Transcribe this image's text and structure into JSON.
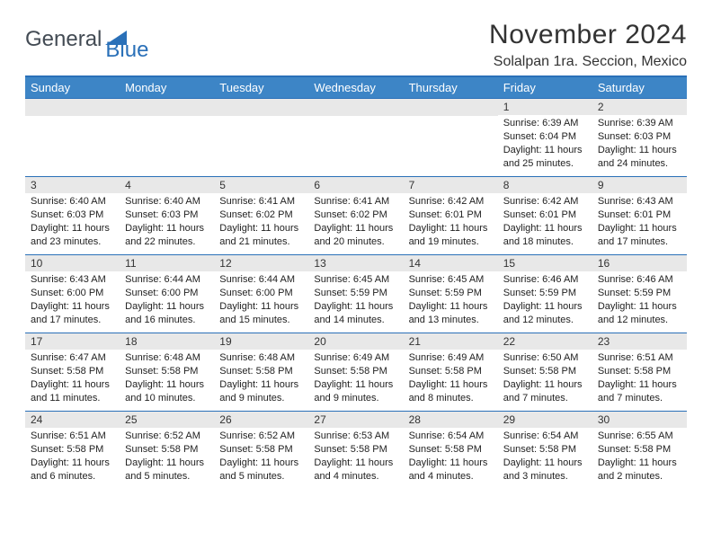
{
  "brand": {
    "text1": "General",
    "text2": "Blue"
  },
  "header": {
    "title": "November 2024",
    "location": "Solalpan 1ra. Seccion, Mexico"
  },
  "colors": {
    "header_bar": "#3d85c6",
    "border": "#2a70b8",
    "day_number_bg": "#e8e8e8",
    "text": "#222222",
    "background": "#ffffff"
  },
  "weekdays": [
    "Sunday",
    "Monday",
    "Tuesday",
    "Wednesday",
    "Thursday",
    "Friday",
    "Saturday"
  ],
  "weeks": [
    [
      null,
      null,
      null,
      null,
      null,
      {
        "n": "1",
        "sr": "6:39 AM",
        "ss": "6:04 PM",
        "dl": "11 hours and 25 minutes."
      },
      {
        "n": "2",
        "sr": "6:39 AM",
        "ss": "6:03 PM",
        "dl": "11 hours and 24 minutes."
      }
    ],
    [
      {
        "n": "3",
        "sr": "6:40 AM",
        "ss": "6:03 PM",
        "dl": "11 hours and 23 minutes."
      },
      {
        "n": "4",
        "sr": "6:40 AM",
        "ss": "6:03 PM",
        "dl": "11 hours and 22 minutes."
      },
      {
        "n": "5",
        "sr": "6:41 AM",
        "ss": "6:02 PM",
        "dl": "11 hours and 21 minutes."
      },
      {
        "n": "6",
        "sr": "6:41 AM",
        "ss": "6:02 PM",
        "dl": "11 hours and 20 minutes."
      },
      {
        "n": "7",
        "sr": "6:42 AM",
        "ss": "6:01 PM",
        "dl": "11 hours and 19 minutes."
      },
      {
        "n": "8",
        "sr": "6:42 AM",
        "ss": "6:01 PM",
        "dl": "11 hours and 18 minutes."
      },
      {
        "n": "9",
        "sr": "6:43 AM",
        "ss": "6:01 PM",
        "dl": "11 hours and 17 minutes."
      }
    ],
    [
      {
        "n": "10",
        "sr": "6:43 AM",
        "ss": "6:00 PM",
        "dl": "11 hours and 17 minutes."
      },
      {
        "n": "11",
        "sr": "6:44 AM",
        "ss": "6:00 PM",
        "dl": "11 hours and 16 minutes."
      },
      {
        "n": "12",
        "sr": "6:44 AM",
        "ss": "6:00 PM",
        "dl": "11 hours and 15 minutes."
      },
      {
        "n": "13",
        "sr": "6:45 AM",
        "ss": "5:59 PM",
        "dl": "11 hours and 14 minutes."
      },
      {
        "n": "14",
        "sr": "6:45 AM",
        "ss": "5:59 PM",
        "dl": "11 hours and 13 minutes."
      },
      {
        "n": "15",
        "sr": "6:46 AM",
        "ss": "5:59 PM",
        "dl": "11 hours and 12 minutes."
      },
      {
        "n": "16",
        "sr": "6:46 AM",
        "ss": "5:59 PM",
        "dl": "11 hours and 12 minutes."
      }
    ],
    [
      {
        "n": "17",
        "sr": "6:47 AM",
        "ss": "5:58 PM",
        "dl": "11 hours and 11 minutes."
      },
      {
        "n": "18",
        "sr": "6:48 AM",
        "ss": "5:58 PM",
        "dl": "11 hours and 10 minutes."
      },
      {
        "n": "19",
        "sr": "6:48 AM",
        "ss": "5:58 PM",
        "dl": "11 hours and 9 minutes."
      },
      {
        "n": "20",
        "sr": "6:49 AM",
        "ss": "5:58 PM",
        "dl": "11 hours and 9 minutes."
      },
      {
        "n": "21",
        "sr": "6:49 AM",
        "ss": "5:58 PM",
        "dl": "11 hours and 8 minutes."
      },
      {
        "n": "22",
        "sr": "6:50 AM",
        "ss": "5:58 PM",
        "dl": "11 hours and 7 minutes."
      },
      {
        "n": "23",
        "sr": "6:51 AM",
        "ss": "5:58 PM",
        "dl": "11 hours and 7 minutes."
      }
    ],
    [
      {
        "n": "24",
        "sr": "6:51 AM",
        "ss": "5:58 PM",
        "dl": "11 hours and 6 minutes."
      },
      {
        "n": "25",
        "sr": "6:52 AM",
        "ss": "5:58 PM",
        "dl": "11 hours and 5 minutes."
      },
      {
        "n": "26",
        "sr": "6:52 AM",
        "ss": "5:58 PM",
        "dl": "11 hours and 5 minutes."
      },
      {
        "n": "27",
        "sr": "6:53 AM",
        "ss": "5:58 PM",
        "dl": "11 hours and 4 minutes."
      },
      {
        "n": "28",
        "sr": "6:54 AM",
        "ss": "5:58 PM",
        "dl": "11 hours and 4 minutes."
      },
      {
        "n": "29",
        "sr": "6:54 AM",
        "ss": "5:58 PM",
        "dl": "11 hours and 3 minutes."
      },
      {
        "n": "30",
        "sr": "6:55 AM",
        "ss": "5:58 PM",
        "dl": "11 hours and 2 minutes."
      }
    ]
  ],
  "labels": {
    "sunrise": "Sunrise: ",
    "sunset": "Sunset: ",
    "daylight": "Daylight: "
  }
}
